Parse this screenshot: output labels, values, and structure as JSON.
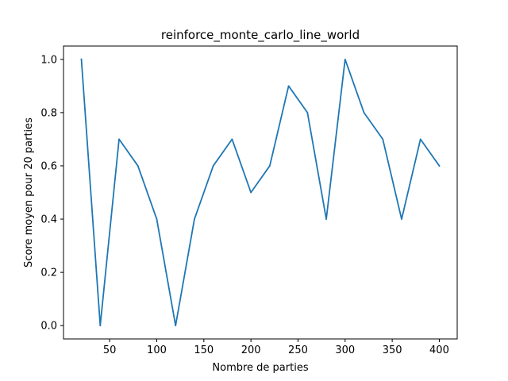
{
  "chart_data": {
    "type": "line",
    "title": "reinforce_monte_carlo_line_world",
    "xlabel": "Nombre de parties",
    "ylabel": "Score moyen pour 20 parties",
    "x": [
      20,
      40,
      60,
      80,
      100,
      120,
      140,
      160,
      180,
      200,
      220,
      240,
      260,
      280,
      300,
      320,
      340,
      360,
      380,
      400
    ],
    "series": [
      {
        "values": [
          1.0,
          0.0,
          0.7,
          0.6,
          0.4,
          0.0,
          0.4,
          0.6,
          0.7,
          0.5,
          0.6,
          0.9,
          0.8,
          0.4,
          1.0,
          0.8,
          0.7,
          0.4,
          0.7,
          0.6
        ],
        "color": "#1f77b4"
      }
    ],
    "xlim": [
      1,
      419
    ],
    "ylim": [
      -0.05,
      1.05
    ],
    "xticks": [
      50,
      100,
      150,
      200,
      250,
      300,
      350,
      400
    ],
    "xtick_labels": [
      "50",
      "100",
      "150",
      "200",
      "250",
      "300",
      "350",
      "400"
    ],
    "yticks": [
      0.0,
      0.2,
      0.4,
      0.6,
      0.8,
      1.0
    ],
    "ytick_labels": [
      "0.0",
      "0.2",
      "0.4",
      "0.6",
      "0.8",
      "1.0"
    ],
    "grid": false,
    "legend": "none"
  }
}
